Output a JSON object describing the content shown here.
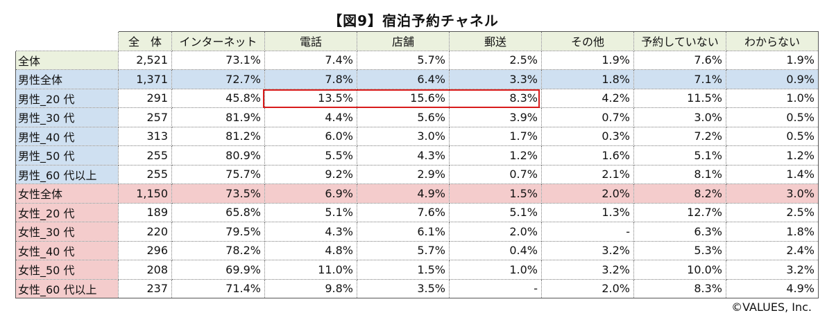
{
  "title": "【図9】宿泊予約チャネル",
  "columns": [
    "",
    "全　体",
    "インターネット",
    "電話",
    "店舗",
    "郵送",
    "その他",
    "予約していない",
    "わからない"
  ],
  "rows": [
    {
      "label": "全体",
      "group": "all",
      "cells": [
        "2,521",
        "73.1%",
        "7.4%",
        "5.7%",
        "2.5%",
        "1.9%",
        "7.6%",
        "1.9%"
      ]
    },
    {
      "label": "男性全体",
      "group": "total-m",
      "cells": [
        "1,371",
        "72.7%",
        "7.8%",
        "6.4%",
        "3.3%",
        "1.8%",
        "7.1%",
        "0.9%"
      ]
    },
    {
      "label": "男性_20 代",
      "group": "m",
      "cells": [
        "291",
        "45.8%",
        "13.5%",
        "15.6%",
        "8.3%",
        "4.2%",
        "11.5%",
        "1.0%"
      ]
    },
    {
      "label": "男性_30 代",
      "group": "m",
      "cells": [
        "257",
        "81.9%",
        "4.4%",
        "5.6%",
        "3.9%",
        "0.7%",
        "3.0%",
        "0.5%"
      ]
    },
    {
      "label": "男性_40 代",
      "group": "m",
      "cells": [
        "313",
        "81.2%",
        "6.0%",
        "3.0%",
        "1.7%",
        "0.3%",
        "7.2%",
        "0.5%"
      ]
    },
    {
      "label": "男性_50 代",
      "group": "m",
      "cells": [
        "255",
        "80.9%",
        "5.5%",
        "4.3%",
        "1.2%",
        "1.6%",
        "5.1%",
        "1.2%"
      ]
    },
    {
      "label": "男性_60 代以上",
      "group": "m",
      "cells": [
        "255",
        "75.7%",
        "9.2%",
        "2.9%",
        "0.7%",
        "2.1%",
        "8.1%",
        "1.4%"
      ]
    },
    {
      "label": "女性全体",
      "group": "total-f",
      "cells": [
        "1,150",
        "73.5%",
        "6.9%",
        "4.9%",
        "1.5%",
        "2.0%",
        "8.2%",
        "3.0%"
      ]
    },
    {
      "label": "女性_20 代",
      "group": "f",
      "cells": [
        "189",
        "65.8%",
        "5.1%",
        "7.6%",
        "5.1%",
        "1.3%",
        "12.7%",
        "2.5%"
      ]
    },
    {
      "label": "女性_30 代",
      "group": "f",
      "cells": [
        "220",
        "79.5%",
        "4.3%",
        "6.1%",
        "2.0%",
        "-",
        "6.3%",
        "1.8%"
      ]
    },
    {
      "label": "女性_40 代",
      "group": "f",
      "cells": [
        "296",
        "78.2%",
        "4.8%",
        "5.7%",
        "0.4%",
        "3.2%",
        "5.3%",
        "2.4%"
      ]
    },
    {
      "label": "女性_50 代",
      "group": "f",
      "cells": [
        "208",
        "69.9%",
        "11.0%",
        "1.5%",
        "1.0%",
        "3.2%",
        "10.0%",
        "3.2%"
      ]
    },
    {
      "label": "女性_60 代以上",
      "group": "f",
      "cells": [
        "237",
        "71.4%",
        "9.8%",
        "3.5%",
        "-",
        "2.0%",
        "8.3%",
        "4.9%"
      ]
    }
  ],
  "colors": {
    "header": "#ebf1de",
    "male": "#cfe0f1",
    "female": "#f4cccc",
    "highlight": "#d81b1b"
  },
  "copyright": "©VALUES, Inc."
}
